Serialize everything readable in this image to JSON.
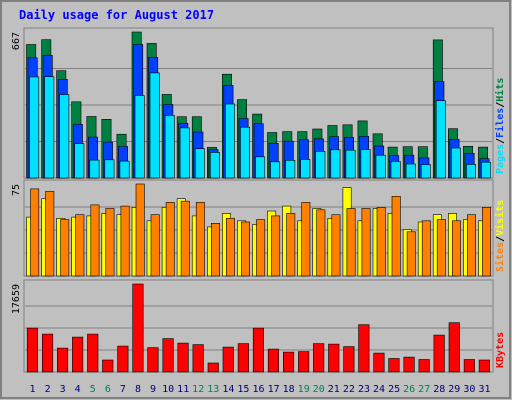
{
  "title": "Daily usage for August 2017",
  "colors": {
    "background": "#c0c0c0",
    "border": "#808080",
    "title": "#0000ff",
    "hits": "#008040",
    "files": "#0040ff",
    "pages": "#00e0ff",
    "visits": "#ffff00",
    "sites": "#ff8000",
    "kbytes": "#ff0000",
    "weekend": "#00805c",
    "weekday": "#000080"
  },
  "chart_data": [
    {
      "type": "bar",
      "title": "",
      "ymax_label": "667",
      "ylim": [
        0,
        667
      ],
      "legend": [
        {
          "label": "Pages",
          "color": "#00e0ff"
        },
        {
          "label": "Files",
          "color": "#0040ff"
        },
        {
          "label": "Hits",
          "color": "#008040"
        }
      ],
      "categories": [
        "1",
        "2",
        "3",
        "4",
        "5",
        "6",
        "7",
        "8",
        "9",
        "10",
        "11",
        "12",
        "13",
        "14",
        "15",
        "16",
        "17",
        "18",
        "19",
        "20",
        "21",
        "22",
        "23",
        "24",
        "25",
        "26",
        "27",
        "28",
        "29",
        "30",
        "31"
      ],
      "series": [
        {
          "name": "Hits",
          "values": [
            610,
            632,
            490,
            348,
            281,
            268,
            200,
            667,
            615,
            382,
            280,
            280,
            140,
            474,
            358,
            292,
            208,
            212,
            212,
            224,
            240,
            243,
            261,
            202,
            141,
            143,
            143,
            631,
            225,
            145,
            141
          ]
        },
        {
          "name": "Files",
          "values": [
            549,
            560,
            451,
            245,
            187,
            164,
            144,
            610,
            551,
            336,
            250,
            210,
            130,
            423,
            272,
            248,
            158,
            168,
            175,
            179,
            189,
            186,
            190,
            146,
            102,
            104,
            92,
            441,
            177,
            113,
            88
          ]
        },
        {
          "name": "Pages",
          "values": [
            462,
            463,
            381,
            157,
            82,
            83,
            77,
            377,
            480,
            286,
            229,
            134,
            117,
            338,
            232,
            97,
            74,
            81,
            85,
            122,
            129,
            127,
            130,
            104,
            76,
            64,
            61,
            353,
            137,
            62,
            72
          ]
        }
      ]
    },
    {
      "type": "bar",
      "title": "",
      "ymax_label": "75",
      "ylim": [
        0,
        75
      ],
      "legend": [
        {
          "label": "Sites",
          "color": "#ff8000"
        },
        {
          "label": "Visits",
          "color": "#ffff00"
        }
      ],
      "categories": [
        "1",
        "2",
        "3",
        "4",
        "5",
        "6",
        "7",
        "8",
        "9",
        "10",
        "11",
        "12",
        "13",
        "14",
        "15",
        "16",
        "17",
        "18",
        "19",
        "20",
        "21",
        "22",
        "23",
        "24",
        "25",
        "26",
        "27",
        "28",
        "29",
        "30",
        "31"
      ],
      "series": [
        {
          "name": "Visits",
          "values": [
            48,
            63,
            47,
            48,
            49,
            51,
            50,
            56,
            45,
            56,
            63,
            49,
            40,
            51,
            45,
            42,
            53,
            57,
            45,
            55,
            47,
            72,
            45,
            55,
            51,
            38,
            44,
            50,
            51,
            46,
            45
          ]
        },
        {
          "name": "Sites",
          "values": [
            71,
            69,
            46,
            50,
            58,
            55,
            57,
            75,
            50,
            60,
            61,
            60,
            43,
            47,
            44,
            46,
            49,
            51,
            60,
            54,
            50,
            55,
            55,
            56,
            65,
            36,
            45,
            46,
            45,
            50,
            56
          ]
        }
      ]
    },
    {
      "type": "bar",
      "title": "",
      "ymax_label": "17659",
      "ylim": [
        0,
        17659
      ],
      "legend": [
        {
          "label": "KBytes",
          "color": "#ff0000"
        }
      ],
      "categories": [
        "1",
        "2",
        "3",
        "4",
        "5",
        "6",
        "7",
        "8",
        "9",
        "10",
        "11",
        "12",
        "13",
        "14",
        "15",
        "16",
        "17",
        "18",
        "19",
        "20",
        "21",
        "22",
        "23",
        "24",
        "25",
        "26",
        "27",
        "28",
        "29",
        "30",
        "31"
      ],
      "weekend_days": [
        "5",
        "6",
        "12",
        "13",
        "19",
        "20",
        "26",
        "27"
      ],
      "series": [
        {
          "name": "KBytes",
          "values": [
            8800,
            7600,
            4800,
            7000,
            7600,
            2400,
            5200,
            17659,
            4900,
            6700,
            5800,
            5500,
            1800,
            5000,
            5700,
            8800,
            4600,
            4000,
            4100,
            5700,
            5600,
            5100,
            9500,
            3800,
            2700,
            3000,
            2500,
            7400,
            9900,
            2500,
            2400
          ]
        }
      ]
    }
  ]
}
